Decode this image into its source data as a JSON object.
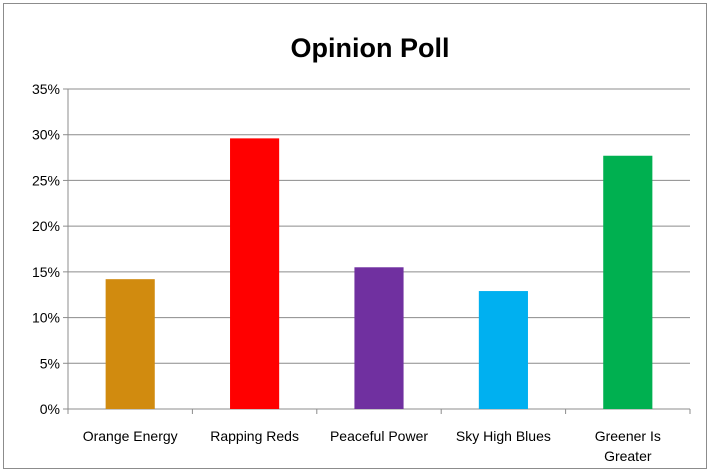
{
  "chart_data": {
    "type": "bar",
    "title": "Opinion Poll",
    "xlabel": "",
    "ylabel": "",
    "categories": [
      "Orange Energy",
      "Rapping Reds",
      "Peaceful Power",
      "Sky High Blues",
      "Greener Is Greater"
    ],
    "values": [
      14.2,
      29.6,
      15.5,
      12.9,
      27.7
    ],
    "colors": [
      "#D18B0F",
      "#FF0000",
      "#7030A0",
      "#00B0F0",
      "#00B050"
    ],
    "ylim": [
      0,
      35
    ],
    "yticks": [
      "0%",
      "5%",
      "10%",
      "15%",
      "20%",
      "25%",
      "30%",
      "35%"
    ],
    "grid": true,
    "legend": "none"
  }
}
